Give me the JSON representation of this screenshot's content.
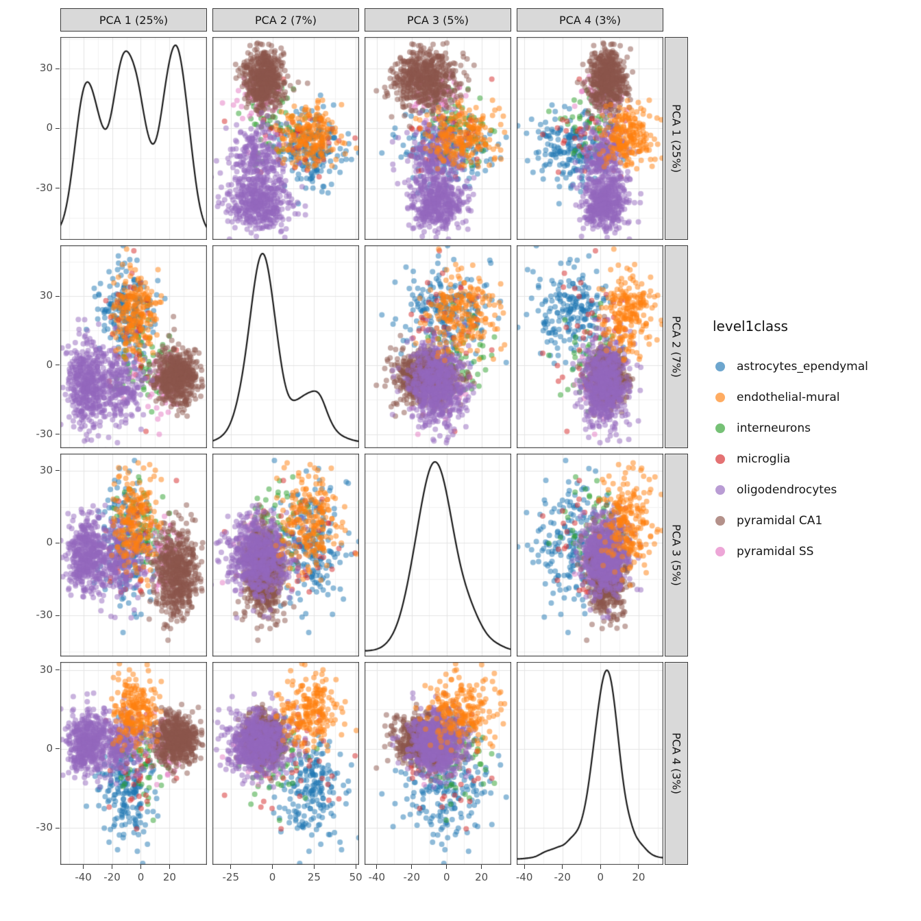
{
  "chart_data": {
    "type": "scatterplot_matrix",
    "diagonal": "density",
    "encoding": "gaussian_mixture_summary_per_class",
    "legend": {
      "title": "level1class",
      "position": "right",
      "entries": [
        {
          "label": "astrocytes_ependymal",
          "color": "#1f77b4"
        },
        {
          "label": "endothelial-mural",
          "color": "#ff7f0e"
        },
        {
          "label": "interneurons",
          "color": "#2ca02c"
        },
        {
          "label": "microglia",
          "color": "#d62728"
        },
        {
          "label": "oligodendrocytes",
          "color": "#9467bd"
        },
        {
          "label": "pyramidal CA1",
          "color": "#8c564b"
        },
        {
          "label": "pyramidal SS",
          "color": "#e377c2"
        }
      ]
    },
    "variables": [
      {
        "id": "PCA1",
        "label": "PCA 1 (25%)",
        "range": [
          -56,
          46
        ],
        "x_ticks": [
          -40,
          -20,
          0,
          20
        ],
        "kde_bandwidth": 4.0
      },
      {
        "id": "PCA2",
        "label": "PCA 2 (7%)",
        "range": [
          -36,
          52
        ],
        "x_ticks": [
          -25,
          0,
          25,
          50
        ],
        "kde_bandwidth": 3.5
      },
      {
        "id": "PCA3",
        "label": "PCA 3 (5%)",
        "range": [
          -47,
          37
        ],
        "x_ticks": [
          -40,
          -20,
          0,
          20
        ],
        "kde_bandwidth": 4.5
      },
      {
        "id": "PCA4",
        "label": "PCA 4 (3%)",
        "range": [
          -44,
          33
        ],
        "x_ticks": [
          -40,
          -20,
          0,
          20
        ],
        "kde_bandwidth": 2.4
      }
    ],
    "y_ticks": [
      30,
      0,
      -30
    ],
    "style": {
      "point_radius": 4,
      "point_alpha": 0.5,
      "grid_major": "#e4e4e4",
      "grid_minor": "#f2f2f2",
      "panel_border": "#3a3a3a",
      "strip_fill": "#d9d9d9",
      "density_color": "#1a1a1a",
      "axis_text": "#4d4d4d"
    },
    "draw_order": [
      "astrocytes_ependymal",
      "interneurons",
      "microglia",
      "pyramidal SS",
      "pyramidal CA1",
      "oligodendrocytes",
      "endothelial-mural"
    ],
    "classes": [
      {
        "name": "astrocytes_ependymal",
        "color": "#1f77b4",
        "count": 190,
        "components": {
          "PCA1": [
            [
              -10,
              10,
              1
            ]
          ],
          "PCA2": [
            [
              24,
              9,
              1
            ]
          ],
          "PCA3": [
            [
              0,
              14,
              1
            ]
          ],
          "PCA4": [
            [
              -16,
              10,
              1
            ]
          ]
        }
      },
      {
        "name": "endothelial-mural",
        "color": "#ff7f0e",
        "count": 210,
        "components": {
          "PCA1": [
            [
              -4,
              8,
              1
            ]
          ],
          "PCA2": [
            [
              22,
              9,
              1
            ]
          ],
          "PCA3": [
            [
              9,
              9,
              1
            ]
          ],
          "PCA4": [
            [
              15,
              7,
              1
            ]
          ]
        }
      },
      {
        "name": "interneurons",
        "color": "#2ca02c",
        "count": 55,
        "components": {
          "PCA1": [
            [
              2,
              10,
              1
            ]
          ],
          "PCA2": [
            [
              2,
              9,
              1
            ]
          ],
          "PCA3": [
            [
              8,
              10,
              1
            ]
          ],
          "PCA4": [
            [
              -6,
              8,
              1
            ]
          ]
        }
      },
      {
        "name": "microglia",
        "color": "#d62728",
        "count": 40,
        "components": {
          "PCA1": [
            [
              -8,
              10,
              1
            ]
          ],
          "PCA2": [
            [
              12,
              14,
              1
            ]
          ],
          "PCA3": [
            [
              -2,
              12,
              1
            ]
          ],
          "PCA4": [
            [
              -2,
              12,
              1
            ]
          ]
        }
      },
      {
        "name": "oligodendrocytes",
        "color": "#9467bd",
        "count": 680,
        "components": {
          "PCA1": [
            [
              -38,
              7,
              0.6
            ],
            [
              -16,
              9,
              0.4
            ]
          ],
          "PCA2": [
            [
              -9,
              9,
              1
            ]
          ],
          "PCA3": [
            [
              -6,
              8,
              1
            ]
          ],
          "PCA4": [
            [
              2,
              6,
              1
            ]
          ]
        }
      },
      {
        "name": "pyramidal CA1",
        "color": "#8c564b",
        "count": 560,
        "components": {
          "PCA1": [
            [
              25,
              7,
              1
            ]
          ],
          "PCA2": [
            [
              -5,
              6,
              1
            ]
          ],
          "PCA3": [
            [
              -12,
              9,
              1
            ]
          ],
          "PCA4": [
            [
              4,
              5,
              1
            ]
          ]
        }
      },
      {
        "name": "pyramidal SS",
        "color": "#e377c2",
        "count": 60,
        "components": {
          "PCA1": [
            [
              14,
              8,
              1
            ]
          ],
          "PCA2": [
            [
              -8,
              7,
              1
            ]
          ],
          "PCA3": [
            [
              -4,
              8,
              1
            ]
          ],
          "PCA4": [
            [
              0,
              6,
              1
            ]
          ]
        }
      }
    ]
  }
}
